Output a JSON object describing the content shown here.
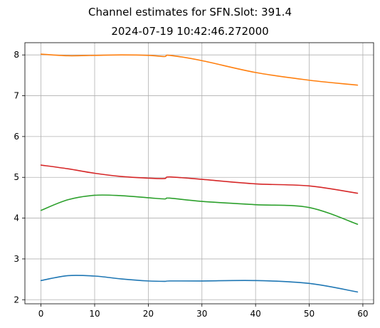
{
  "chart_data": {
    "type": "line",
    "title": "Channel estimates for SFN.Slot: 391.4",
    "subtitle": "2024-07-19 10:42:46.272000",
    "xlabel": "",
    "ylabel": "",
    "xlim": [
      -3,
      62
    ],
    "ylim": [
      1.9,
      8.3
    ],
    "xticks": [
      0,
      10,
      20,
      30,
      40,
      50,
      60
    ],
    "yticks": [
      2,
      3,
      4,
      5,
      6,
      7,
      8
    ],
    "grid": true,
    "legend": "none",
    "x": [
      0,
      5,
      10,
      15,
      20,
      23,
      24,
      30,
      40,
      50,
      59
    ],
    "series": [
      {
        "color": "#1f77b4",
        "values": [
          2.47,
          2.59,
          2.58,
          2.51,
          2.46,
          2.45,
          2.46,
          2.46,
          2.47,
          2.4,
          2.19
        ]
      },
      {
        "color": "#ff7f0e",
        "values": [
          8.02,
          7.98,
          7.99,
          8.0,
          7.99,
          7.96,
          7.99,
          7.86,
          7.57,
          7.38,
          7.26
        ]
      },
      {
        "color": "#2ca02c",
        "values": [
          4.19,
          4.45,
          4.56,
          4.55,
          4.5,
          4.47,
          4.49,
          4.41,
          4.33,
          4.26,
          3.85
        ]
      },
      {
        "color": "#d62728",
        "values": [
          5.3,
          5.21,
          5.1,
          5.02,
          4.98,
          4.97,
          5.01,
          4.95,
          4.84,
          4.79,
          4.61
        ]
      }
    ]
  }
}
